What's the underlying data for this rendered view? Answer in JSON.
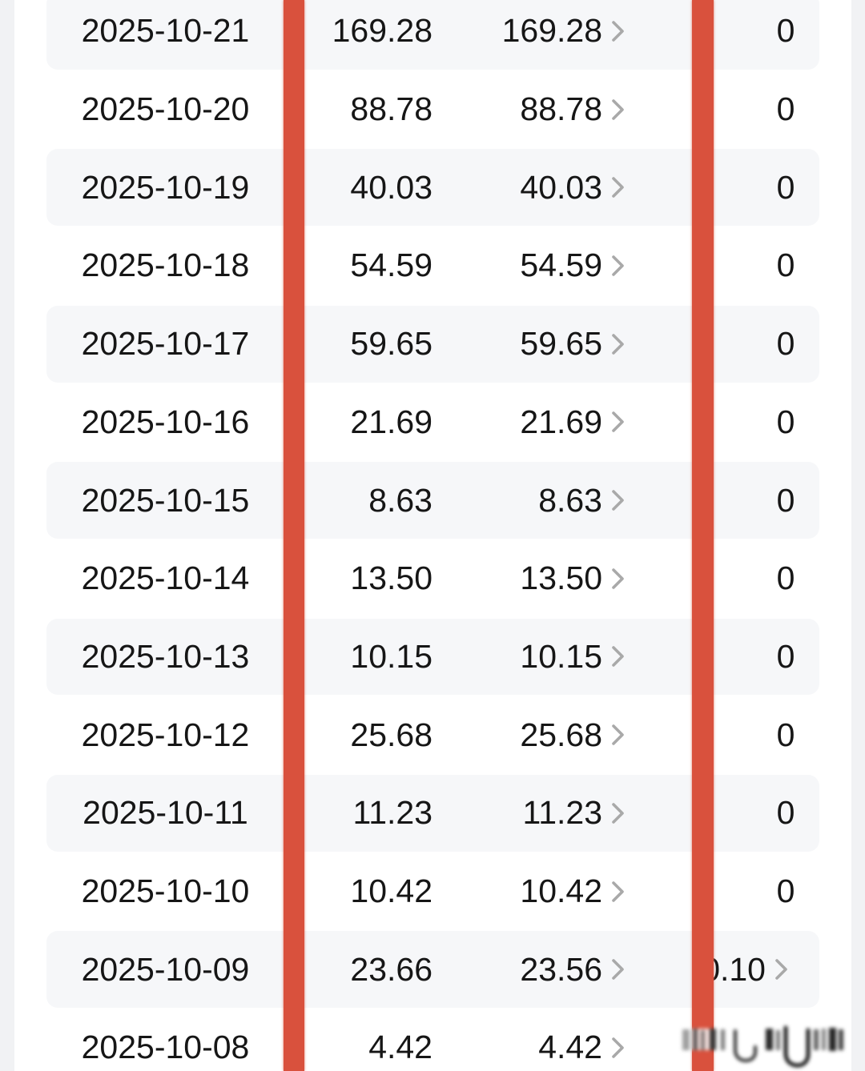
{
  "app": {
    "view_title": "daily-earnings-table"
  },
  "colors": {
    "page_background": "#f1f2f4",
    "card_background": "#ffffff",
    "row_stripe": "#f6f7f9",
    "text": "#161616",
    "chevron": "#a9a9a9",
    "redaction_bar": "#d9513d"
  },
  "table": {
    "rows": [
      {
        "date": "2025-10-21",
        "amount": "169.28",
        "detail": "169.28",
        "extra": "0",
        "striped": true,
        "extra_chevron": false,
        "extra_blurred": false
      },
      {
        "date": "2025-10-20",
        "amount": "88.78",
        "detail": "88.78",
        "extra": "0",
        "striped": false,
        "extra_chevron": false,
        "extra_blurred": false
      },
      {
        "date": "2025-10-19",
        "amount": "40.03",
        "detail": "40.03",
        "extra": "0",
        "striped": true,
        "extra_chevron": false,
        "extra_blurred": false
      },
      {
        "date": "2025-10-18",
        "amount": "54.59",
        "detail": "54.59",
        "extra": "0",
        "striped": false,
        "extra_chevron": false,
        "extra_blurred": false
      },
      {
        "date": "2025-10-17",
        "amount": "59.65",
        "detail": "59.65",
        "extra": "0",
        "striped": true,
        "extra_chevron": false,
        "extra_blurred": false
      },
      {
        "date": "2025-10-16",
        "amount": "21.69",
        "detail": "21.69",
        "extra": "0",
        "striped": false,
        "extra_chevron": false,
        "extra_blurred": false
      },
      {
        "date": "2025-10-15",
        "amount": "8.63",
        "detail": "8.63",
        "extra": "0",
        "striped": true,
        "extra_chevron": false,
        "extra_blurred": false
      },
      {
        "date": "2025-10-14",
        "amount": "13.50",
        "detail": "13.50",
        "extra": "0",
        "striped": false,
        "extra_chevron": false,
        "extra_blurred": false
      },
      {
        "date": "2025-10-13",
        "amount": "10.15",
        "detail": "10.15",
        "extra": "0",
        "striped": true,
        "extra_chevron": false,
        "extra_blurred": false
      },
      {
        "date": "2025-10-12",
        "amount": "25.68",
        "detail": "25.68",
        "extra": "0",
        "striped": false,
        "extra_chevron": false,
        "extra_blurred": false
      },
      {
        "date": "2025-10-11",
        "amount": "11.23",
        "detail": "11.23",
        "extra": "0",
        "striped": true,
        "extra_chevron": false,
        "extra_blurred": false
      },
      {
        "date": "2025-10-10",
        "amount": "10.42",
        "detail": "10.42",
        "extra": "0",
        "striped": false,
        "extra_chevron": false,
        "extra_blurred": false
      },
      {
        "date": "2025-10-09",
        "amount": "23.66",
        "detail": "23.56",
        "extra": "0.10",
        "striped": true,
        "extra_chevron": true,
        "extra_blurred": false
      },
      {
        "date": "2025-10-08",
        "amount": "4.42",
        "detail": "4.42",
        "extra": "",
        "striped": false,
        "extra_chevron": false,
        "extra_blurred": true
      }
    ]
  },
  "annotations": {
    "redaction_bar_count": "2",
    "blurred_watermark_present": "true"
  }
}
